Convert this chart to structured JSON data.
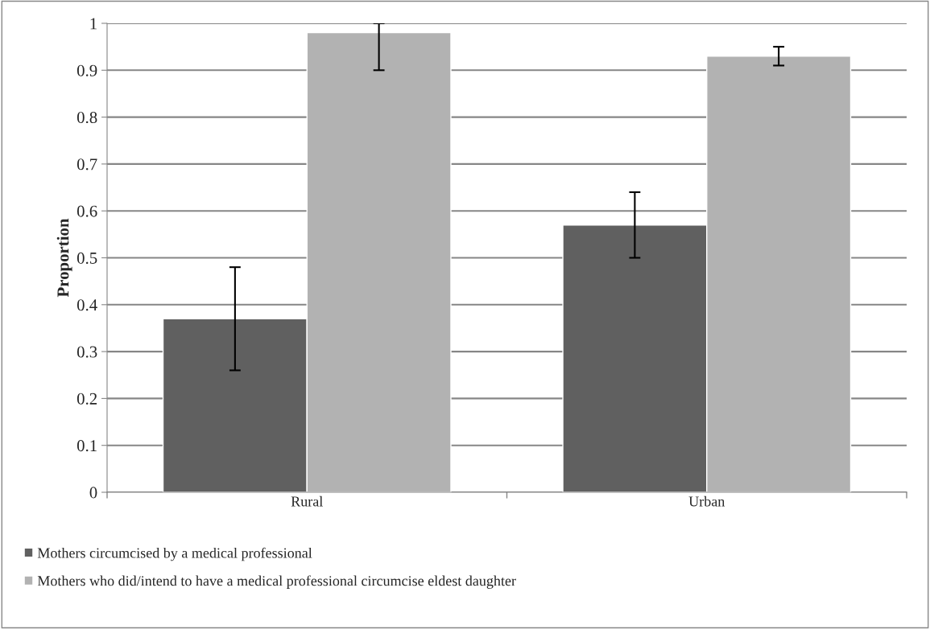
{
  "chart_data": {
    "type": "bar",
    "ylabel": "Proportion",
    "categories": [
      "Rural",
      "Urban"
    ],
    "series": [
      {
        "name": "Mothers circumcised by a medical professional",
        "color": "#606060",
        "values": [
          0.37,
          0.57
        ],
        "errors": [
          [
            0.26,
            0.48
          ],
          [
            0.5,
            0.64
          ]
        ]
      },
      {
        "name": "Mothers who did/intend to have a medical professional circumcise eldest daughter",
        "color": "#b2b2b2",
        "values": [
          0.98,
          0.93
        ],
        "errors": [
          [
            0.9,
            1.0
          ],
          [
            0.91,
            0.95
          ]
        ]
      }
    ],
    "ylim": [
      0,
      1
    ],
    "yticks": [
      0,
      0.1,
      0.2,
      0.3,
      0.4,
      0.5,
      0.6,
      0.7,
      0.8,
      0.9,
      1
    ],
    "grid": "y",
    "legend": "bottom"
  }
}
